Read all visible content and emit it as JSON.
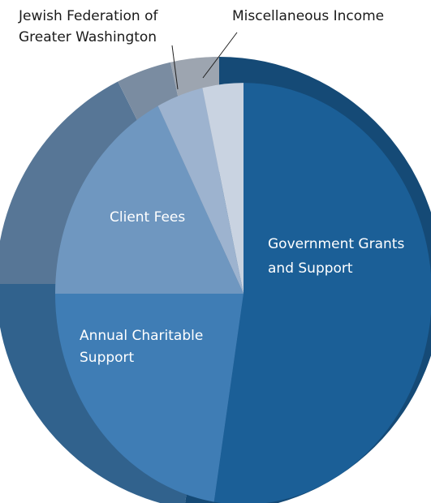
{
  "chart_data": {
    "type": "pie",
    "slices": [
      {
        "label": "Government Grants and Support",
        "lines": [
          "Government Grants",
          "and Support"
        ],
        "value": 52.5,
        "color": "#1b5f97",
        "label_side": "inside"
      },
      {
        "label": "Annual Charitable Support",
        "lines": [
          "Annual Charitable",
          "Support"
        ],
        "value": 22.5,
        "color": "#3f7db5",
        "label_side": "inside"
      },
      {
        "label": "Client Fees",
        "lines": [
          "Client Fees"
        ],
        "value": 17.5,
        "color": "#6f97c0",
        "label_side": "inside"
      },
      {
        "label": "Jewish Federation of Greater Washington",
        "lines": [
          "Jewish Federation of",
          "Greater Washington"
        ],
        "value": 4.0,
        "color": "#9db3cf",
        "label_side": "outside"
      },
      {
        "label": "Miscellaneous Income",
        "lines": [
          "Miscellaneous Income"
        ],
        "value": 3.5,
        "color": "#c9d3e1",
        "label_side": "outside"
      }
    ],
    "start_angle_deg": 0,
    "direction": "clockwise",
    "legend": "none",
    "style": "3d-tilted"
  }
}
